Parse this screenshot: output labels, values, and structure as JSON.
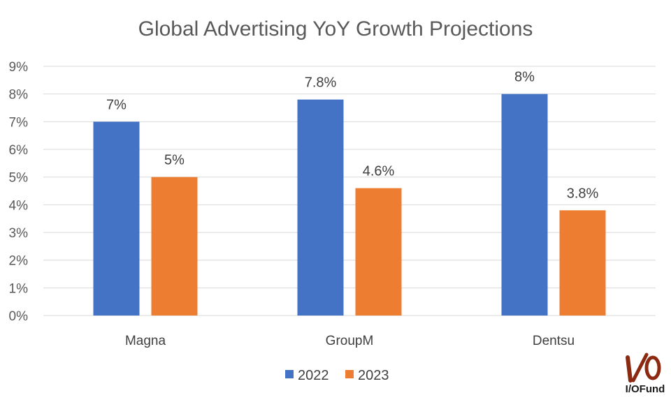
{
  "chart_data": {
    "type": "bar",
    "title": "Global Advertising YoY Growth Projections",
    "categories": [
      "Magna",
      "GroupM",
      "Dentsu"
    ],
    "series": [
      {
        "name": "2022",
        "values": [
          7,
          7.8,
          8
        ],
        "labels": [
          "7%",
          "7.8%",
          "8%"
        ],
        "color": "#4472c4"
      },
      {
        "name": "2023",
        "values": [
          5,
          4.6,
          3.8
        ],
        "labels": [
          "5%",
          "4.6%",
          "3.8%"
        ],
        "color": "#ed7d31"
      }
    ],
    "ylim": [
      0,
      9
    ],
    "yticks": [
      "0%",
      "1%",
      "2%",
      "3%",
      "4%",
      "5%",
      "6%",
      "7%",
      "8%",
      "9%"
    ],
    "grid": true,
    "legend_position": "bottom"
  },
  "logo": {
    "text": "I/OFund",
    "color": "#8b2a10"
  }
}
